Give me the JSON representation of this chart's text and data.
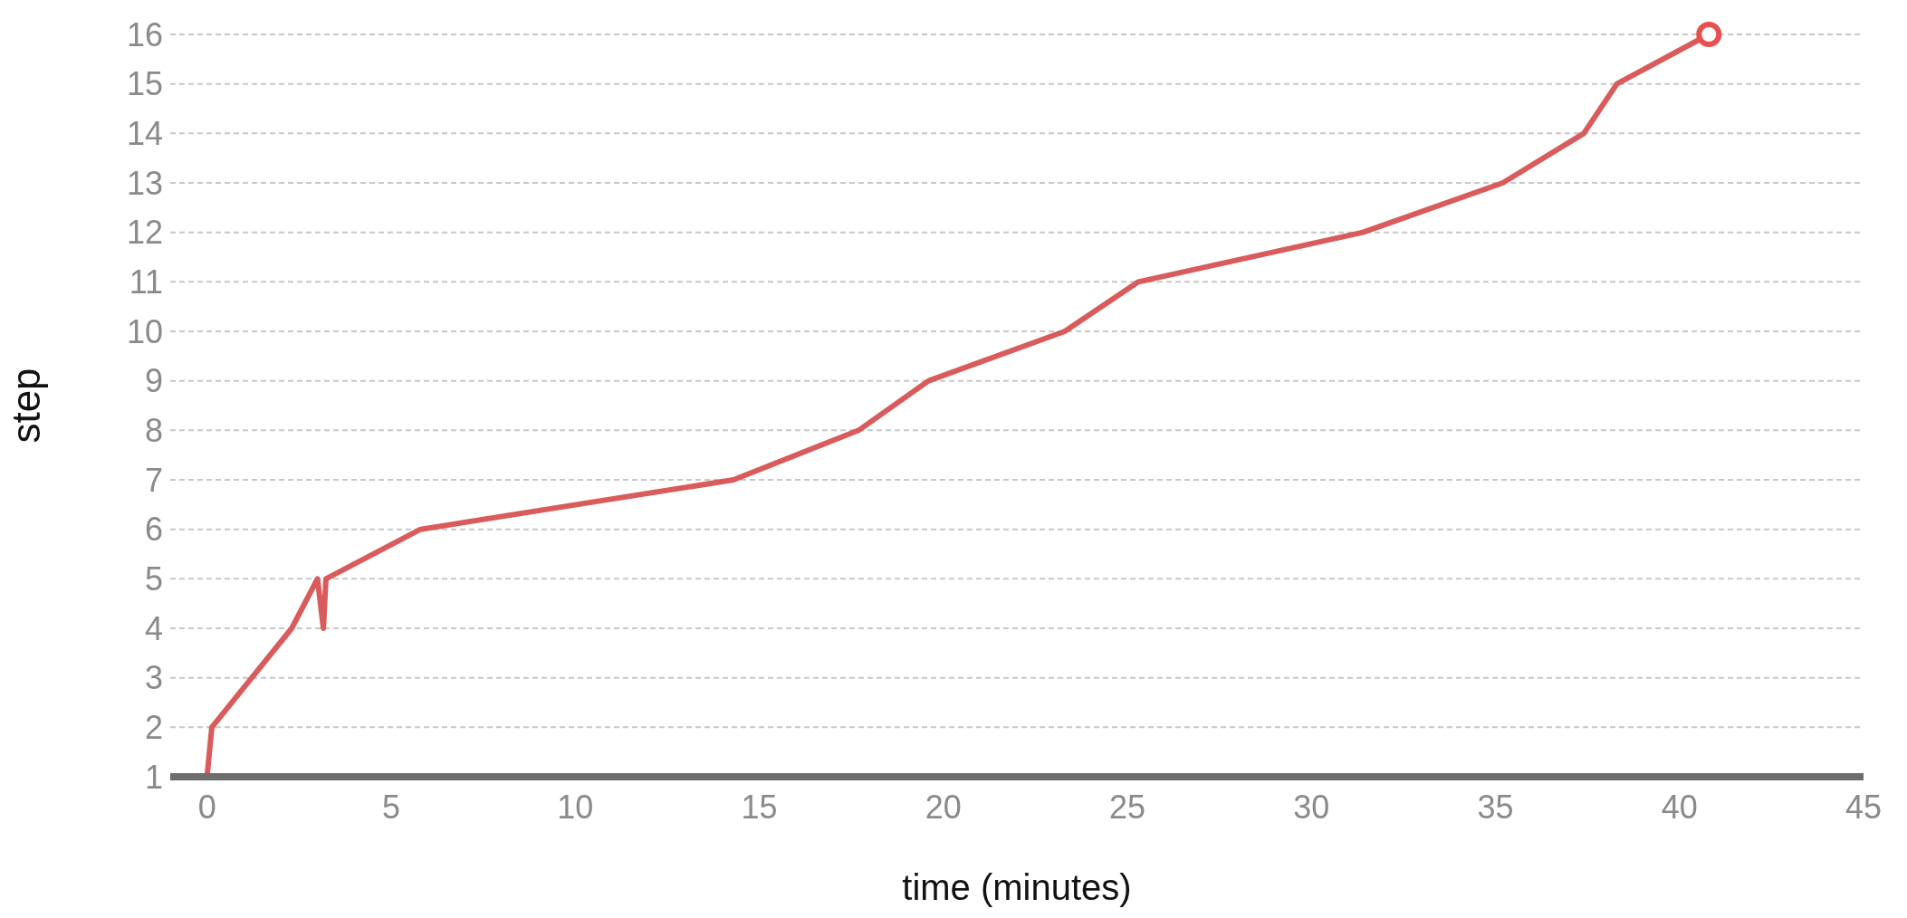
{
  "chart_data": {
    "type": "line",
    "xlabel": "time (minutes)",
    "ylabel": "step",
    "series": [
      {
        "color": "#d95b5b",
        "marker": "none",
        "x": [
          0,
          0.13,
          2.3,
          3.0,
          3.16,
          3.23,
          5.8,
          14.3,
          17.7,
          19.6,
          23.3,
          25.3,
          31.4,
          35.2,
          37.4,
          38.3,
          40.8
        ],
        "values": [
          1,
          2,
          4,
          5,
          4,
          5,
          6,
          7,
          8,
          9,
          10,
          11,
          12,
          13,
          14,
          15,
          16
        ]
      },
      {
        "type": "scatter",
        "color": "#e8504f",
        "marker": "circle",
        "x": [
          40.8
        ],
        "values": [
          16
        ]
      }
    ],
    "xlim": [
      -1,
      45
    ],
    "xticks": [
      0,
      5,
      10,
      15,
      20,
      25,
      30,
      35,
      40,
      45
    ],
    "ylim": [
      1,
      16
    ],
    "yticks": [
      1,
      2,
      3,
      4,
      5,
      6,
      7,
      8,
      9,
      10,
      11,
      12,
      13,
      14,
      15,
      16
    ],
    "grid": "y",
    "legend": false,
    "line_style": "solid"
  }
}
